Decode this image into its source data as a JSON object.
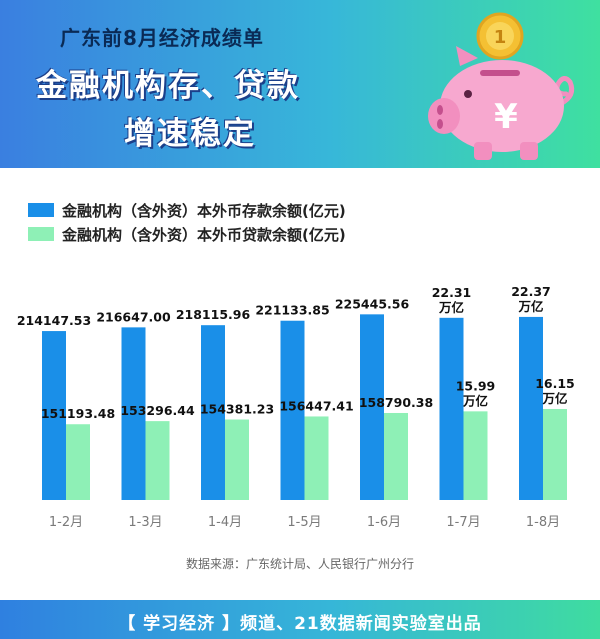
{
  "header": {
    "subtitle": "广东前8月经济成绩单",
    "title_line1": "金融机构存、贷款",
    "title_line2": "增速稳定"
  },
  "piggy": {
    "coin_text": "1",
    "yen_text": "¥"
  },
  "colors": {
    "deposit": "#1a8fe8",
    "loan": "#8ef0b6",
    "header_start": "#3a7fe0",
    "header_end": "#3fe0a0"
  },
  "chart_data": {
    "type": "bar",
    "categories": [
      "1-2月",
      "1-3月",
      "1-4月",
      "1-5月",
      "1-6月",
      "1-7月",
      "1-8月"
    ],
    "series": [
      {
        "name": "金融机构（含外资）本外币存款余额(亿元)",
        "values": [
          214147.53,
          216647.0,
          218115.96,
          221133.85,
          225445.56,
          223100,
          223700
        ],
        "labels": [
          "214147.53",
          "216647.00",
          "218115.96",
          "221133.85",
          "225445.56",
          "22.31\n万亿",
          "22.37\n万亿"
        ]
      },
      {
        "name": "金融机构（含外资）本外币贷款余额(亿元)",
        "values": [
          151193.48,
          153296.44,
          154381.23,
          156447.41,
          158790.38,
          159900,
          161500
        ],
        "labels": [
          "151193.48",
          "153296.44",
          "154381.23",
          "156447.41",
          "158790.38",
          "15.99\n万亿",
          "16.15\n万亿"
        ]
      }
    ],
    "legend_position": "top-left",
    "grid": false
  },
  "source": "数据来源：广东统计局、人民银行广州分行",
  "footer": "【 学习经济 】频道、21数据新闻实验室出品"
}
